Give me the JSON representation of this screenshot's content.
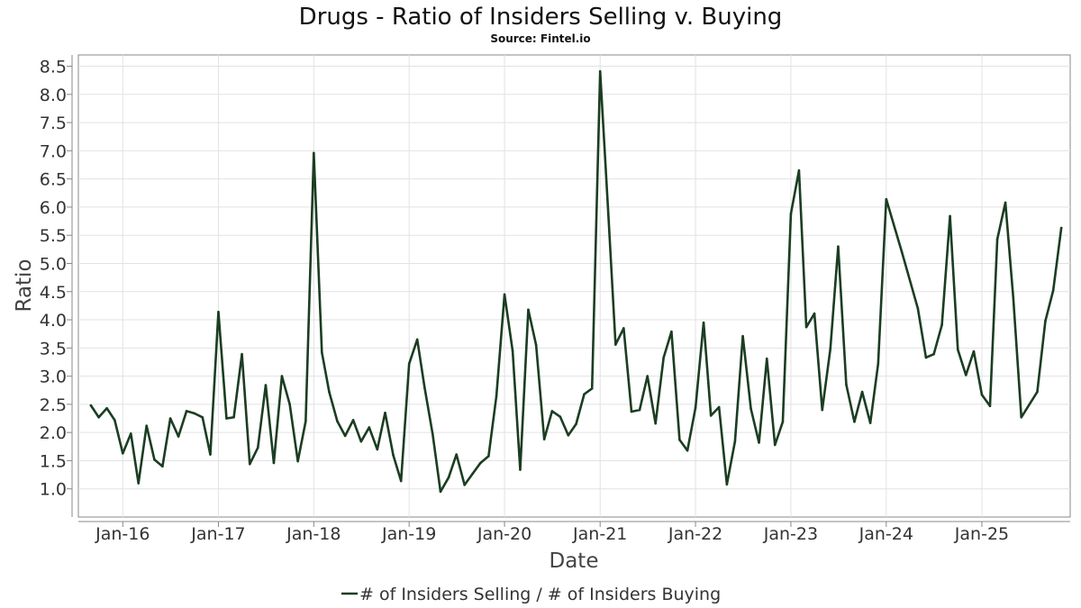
{
  "chart_data": {
    "type": "line",
    "title": "Drugs - Ratio of Insiders Selling v. Buying",
    "subtitle": "Source: Fintel.io",
    "xlabel": "Date",
    "ylabel": "Ratio",
    "ylim": [
      0.5,
      8.7
    ],
    "xlim": [
      "2015-07-15",
      "2025-12-05"
    ],
    "grid": true,
    "legend_placement": "bottom-center",
    "yticks": [
      "1.0",
      "1.5",
      "2.0",
      "2.5",
      "3.0",
      "3.5",
      "4.0",
      "4.5",
      "5.0",
      "5.5",
      "6.0",
      "6.5",
      "7.0",
      "7.5",
      "8.0",
      "8.5"
    ],
    "xticks": [
      {
        "label": "Jan-16",
        "date": "2016-01-01"
      },
      {
        "label": "Jan-17",
        "date": "2017-01-01"
      },
      {
        "label": "Jan-18",
        "date": "2018-01-01"
      },
      {
        "label": "Jan-19",
        "date": "2019-01-01"
      },
      {
        "label": "Jan-20",
        "date": "2020-01-01"
      },
      {
        "label": "Jan-21",
        "date": "2021-01-01"
      },
      {
        "label": "Jan-22",
        "date": "2022-01-01"
      },
      {
        "label": "Jan-23",
        "date": "2023-01-01"
      },
      {
        "label": "Jan-24",
        "date": "2024-01-01"
      },
      {
        "label": "Jan-25",
        "date": "2025-01-01"
      }
    ],
    "series": [
      {
        "name": "# of Insiders Selling / # of Insiders Buying",
        "color": "#1b3d22",
        "points": [
          [
            "2015-09-01",
            2.48
          ],
          [
            "2015-10-01",
            2.27
          ],
          [
            "2015-11-01",
            2.43
          ],
          [
            "2015-12-01",
            2.22
          ],
          [
            "2016-01-01",
            1.63
          ],
          [
            "2016-02-01",
            1.98
          ],
          [
            "2016-03-01",
            1.1
          ],
          [
            "2016-04-01",
            2.12
          ],
          [
            "2016-05-01",
            1.52
          ],
          [
            "2016-06-01",
            1.4
          ],
          [
            "2016-07-01",
            2.25
          ],
          [
            "2016-08-01",
            1.93
          ],
          [
            "2016-09-01",
            2.38
          ],
          [
            "2016-10-01",
            2.34
          ],
          [
            "2016-11-01",
            2.27
          ],
          [
            "2016-12-01",
            1.61
          ],
          [
            "2017-01-01",
            4.14
          ],
          [
            "2017-02-01",
            2.25
          ],
          [
            "2017-03-01",
            2.27
          ],
          [
            "2017-04-01",
            3.39
          ],
          [
            "2017-05-01",
            1.44
          ],
          [
            "2017-06-01",
            1.73
          ],
          [
            "2017-07-01",
            2.84
          ],
          [
            "2017-08-01",
            1.46
          ],
          [
            "2017-09-01",
            3.0
          ],
          [
            "2017-10-01",
            2.5
          ],
          [
            "2017-11-01",
            1.49
          ],
          [
            "2017-12-01",
            2.2
          ],
          [
            "2018-01-01",
            6.96
          ],
          [
            "2018-02-01",
            3.42
          ],
          [
            "2018-03-01",
            2.72
          ],
          [
            "2018-04-01",
            2.2
          ],
          [
            "2018-05-01",
            1.94
          ],
          [
            "2018-06-01",
            2.22
          ],
          [
            "2018-07-01",
            1.84
          ],
          [
            "2018-08-01",
            2.09
          ],
          [
            "2018-09-01",
            1.7
          ],
          [
            "2018-10-01",
            2.35
          ],
          [
            "2018-11-01",
            1.6
          ],
          [
            "2018-12-01",
            1.14
          ],
          [
            "2019-01-01",
            3.22
          ],
          [
            "2019-02-01",
            3.65
          ],
          [
            "2019-03-01",
            2.8
          ],
          [
            "2019-04-01",
            1.97
          ],
          [
            "2019-05-01",
            0.95
          ],
          [
            "2019-06-01",
            1.2
          ],
          [
            "2019-07-01",
            1.61
          ],
          [
            "2019-08-01",
            1.07
          ],
          [
            "2019-09-01",
            1.27
          ],
          [
            "2019-10-01",
            1.46
          ],
          [
            "2019-11-01",
            1.58
          ],
          [
            "2019-12-01",
            2.65
          ],
          [
            "2020-01-01",
            4.45
          ],
          [
            "2020-02-01",
            3.45
          ],
          [
            "2020-03-01",
            1.34
          ],
          [
            "2020-04-01",
            4.18
          ],
          [
            "2020-05-01",
            3.55
          ],
          [
            "2020-06-01",
            1.88
          ],
          [
            "2020-07-01",
            2.38
          ],
          [
            "2020-08-01",
            2.28
          ],
          [
            "2020-09-01",
            1.95
          ],
          [
            "2020-10-01",
            2.15
          ],
          [
            "2020-11-01",
            2.68
          ],
          [
            "2020-12-01",
            2.78
          ],
          [
            "2021-01-01",
            8.41
          ],
          [
            "2021-02-01",
            5.9
          ],
          [
            "2021-03-01",
            3.56
          ],
          [
            "2021-04-01",
            3.85
          ],
          [
            "2021-05-01",
            2.37
          ],
          [
            "2021-06-01",
            2.4
          ],
          [
            "2021-07-01",
            3.0
          ],
          [
            "2021-08-01",
            2.16
          ],
          [
            "2021-09-01",
            3.33
          ],
          [
            "2021-10-01",
            3.79
          ],
          [
            "2021-11-01",
            1.87
          ],
          [
            "2021-12-01",
            1.68
          ],
          [
            "2022-01-01",
            2.44
          ],
          [
            "2022-02-01",
            3.95
          ],
          [
            "2022-03-01",
            2.3
          ],
          [
            "2022-04-01",
            2.45
          ],
          [
            "2022-05-01",
            1.08
          ],
          [
            "2022-06-01",
            1.84
          ],
          [
            "2022-07-01",
            3.71
          ],
          [
            "2022-08-01",
            2.42
          ],
          [
            "2022-09-01",
            1.82
          ],
          [
            "2022-10-01",
            3.31
          ],
          [
            "2022-11-01",
            1.78
          ],
          [
            "2022-12-01",
            2.19
          ],
          [
            "2023-01-01",
            5.88
          ],
          [
            "2023-02-01",
            6.65
          ],
          [
            "2023-03-01",
            3.87
          ],
          [
            "2023-04-01",
            4.11
          ],
          [
            "2023-05-01",
            2.4
          ],
          [
            "2023-06-01",
            3.48
          ],
          [
            "2023-07-01",
            5.3
          ],
          [
            "2023-08-01",
            2.85
          ],
          [
            "2023-09-01",
            2.19
          ],
          [
            "2023-10-01",
            2.72
          ],
          [
            "2023-11-01",
            2.17
          ],
          [
            "2023-12-01",
            3.22
          ],
          [
            "2024-01-01",
            6.14
          ],
          [
            "2024-03-01",
            5.2
          ],
          [
            "2024-05-01",
            4.2
          ],
          [
            "2024-06-01",
            3.33
          ],
          [
            "2024-07-01",
            3.39
          ],
          [
            "2024-08-01",
            3.91
          ],
          [
            "2024-09-01",
            5.84
          ],
          [
            "2024-10-01",
            3.47
          ],
          [
            "2024-11-01",
            3.02
          ],
          [
            "2024-12-01",
            3.44
          ],
          [
            "2025-01-01",
            2.67
          ],
          [
            "2025-02-01",
            2.47
          ],
          [
            "2025-03-01",
            5.43
          ],
          [
            "2025-04-01",
            6.08
          ],
          [
            "2025-05-01",
            4.4
          ],
          [
            "2025-06-01",
            2.27
          ],
          [
            "2025-08-01",
            2.72
          ],
          [
            "2025-09-01",
            3.98
          ],
          [
            "2025-10-01",
            4.52
          ],
          [
            "2025-11-01",
            5.63
          ]
        ]
      }
    ]
  }
}
